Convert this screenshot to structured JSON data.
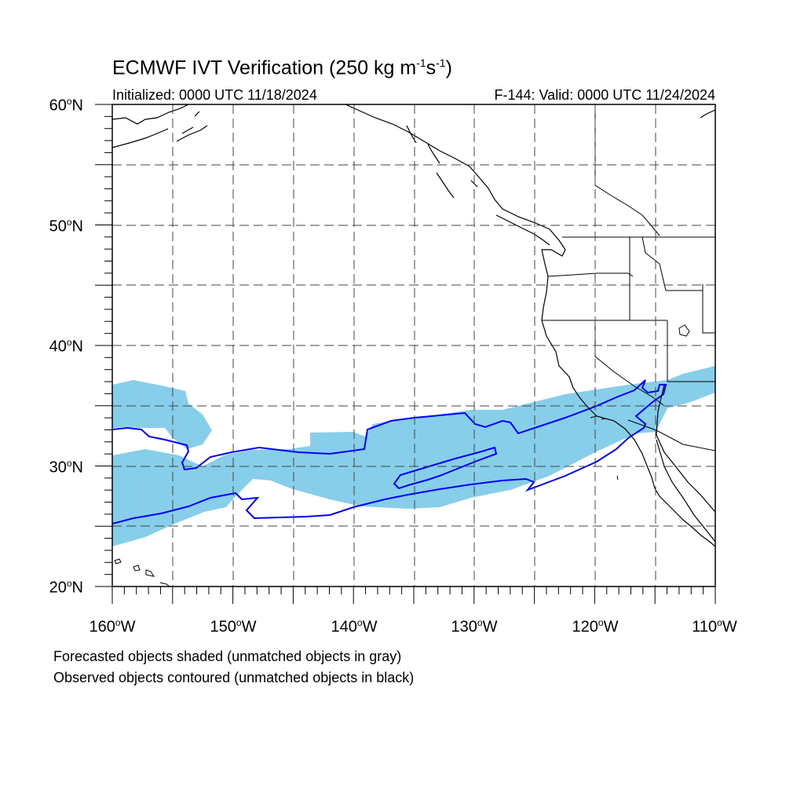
{
  "title": {
    "text": "ECMWF IVT Verification (250 kg m",
    "sup1": "-1",
    "s": "s",
    "sup2": "-1",
    "close": ")"
  },
  "subtitle_left": "Initialized: 0000 UTC 11/18/2024",
  "subtitle_right": "F-144: Valid: 0000 UTC 11/24/2024",
  "caption_1": "Forecasted objects shaded (unmatched objects in gray)",
  "caption_2": "Observed objects contoured (unmatched objects in black)",
  "degree_symbol": "o",
  "lat_labels": [
    {
      "num": "60",
      "hem": "N",
      "lat": 60
    },
    {
      "num": "50",
      "hem": "N",
      "lat": 50
    },
    {
      "num": "40",
      "hem": "N",
      "lat": 40
    },
    {
      "num": "30",
      "hem": "N",
      "lat": 30
    },
    {
      "num": "20",
      "hem": "N",
      "lat": 20
    }
  ],
  "lon_labels": [
    {
      "num": "160",
      "hem": "W",
      "lon": -160
    },
    {
      "num": "150",
      "hem": "W",
      "lon": -150
    },
    {
      "num": "140",
      "hem": "W",
      "lon": -140
    },
    {
      "num": "130",
      "hem": "W",
      "lon": -130
    },
    {
      "num": "120",
      "hem": "W",
      "lon": -120
    },
    {
      "num": "110",
      "hem": "W",
      "lon": -110
    }
  ],
  "map": {
    "lon_range": [
      -160,
      -110
    ],
    "lat_range": [
      20,
      60
    ],
    "grid_spacing_deg": 5,
    "colors": {
      "forecast_fill": "#87ceeb",
      "observed_contour": "#0000ff",
      "coastline": "#000000",
      "grid": "#333333"
    }
  }
}
